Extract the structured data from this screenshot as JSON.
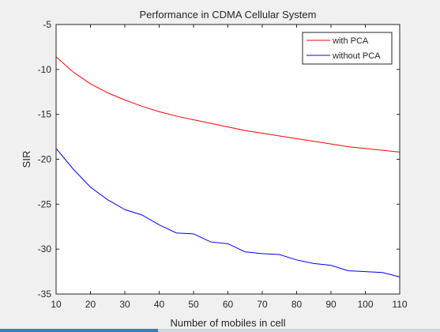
{
  "chart_data": {
    "type": "line",
    "title": "Performance in CDMA Cellular System",
    "xlabel": "Number of mobiles in cell",
    "ylabel": "SIR",
    "xlim": [
      10,
      110
    ],
    "ylim": [
      -35,
      -5
    ],
    "xticks": [
      10,
      20,
      30,
      40,
      50,
      60,
      70,
      80,
      90,
      100,
      110
    ],
    "yticks": [
      -5,
      -10,
      -15,
      -20,
      -25,
      -30,
      -35
    ],
    "grid": false,
    "legend_position": "top-right",
    "x": [
      10,
      15,
      20,
      25,
      30,
      35,
      40,
      45,
      50,
      55,
      60,
      65,
      70,
      75,
      80,
      85,
      90,
      95,
      100,
      105,
      110
    ],
    "series": [
      {
        "name": "with PCA",
        "color": "#ff0000",
        "values": [
          -8.6,
          -10.3,
          -11.6,
          -12.6,
          -13.4,
          -14.1,
          -14.7,
          -15.2,
          -15.6,
          -16.0,
          -16.4,
          -16.8,
          -17.1,
          -17.4,
          -17.7,
          -18.0,
          -18.3,
          -18.6,
          -18.8,
          -19.0,
          -19.2
        ]
      },
      {
        "name": "without PCA",
        "color": "#0000ff",
        "values": [
          -18.8,
          -21.1,
          -23.1,
          -24.5,
          -25.6,
          -26.2,
          -27.3,
          -28.2,
          -28.3,
          -29.2,
          -29.4,
          -30.3,
          -30.5,
          -30.6,
          -31.2,
          -31.6,
          -31.8,
          -32.4,
          -32.5,
          -32.6,
          -33.1
        ]
      }
    ]
  }
}
